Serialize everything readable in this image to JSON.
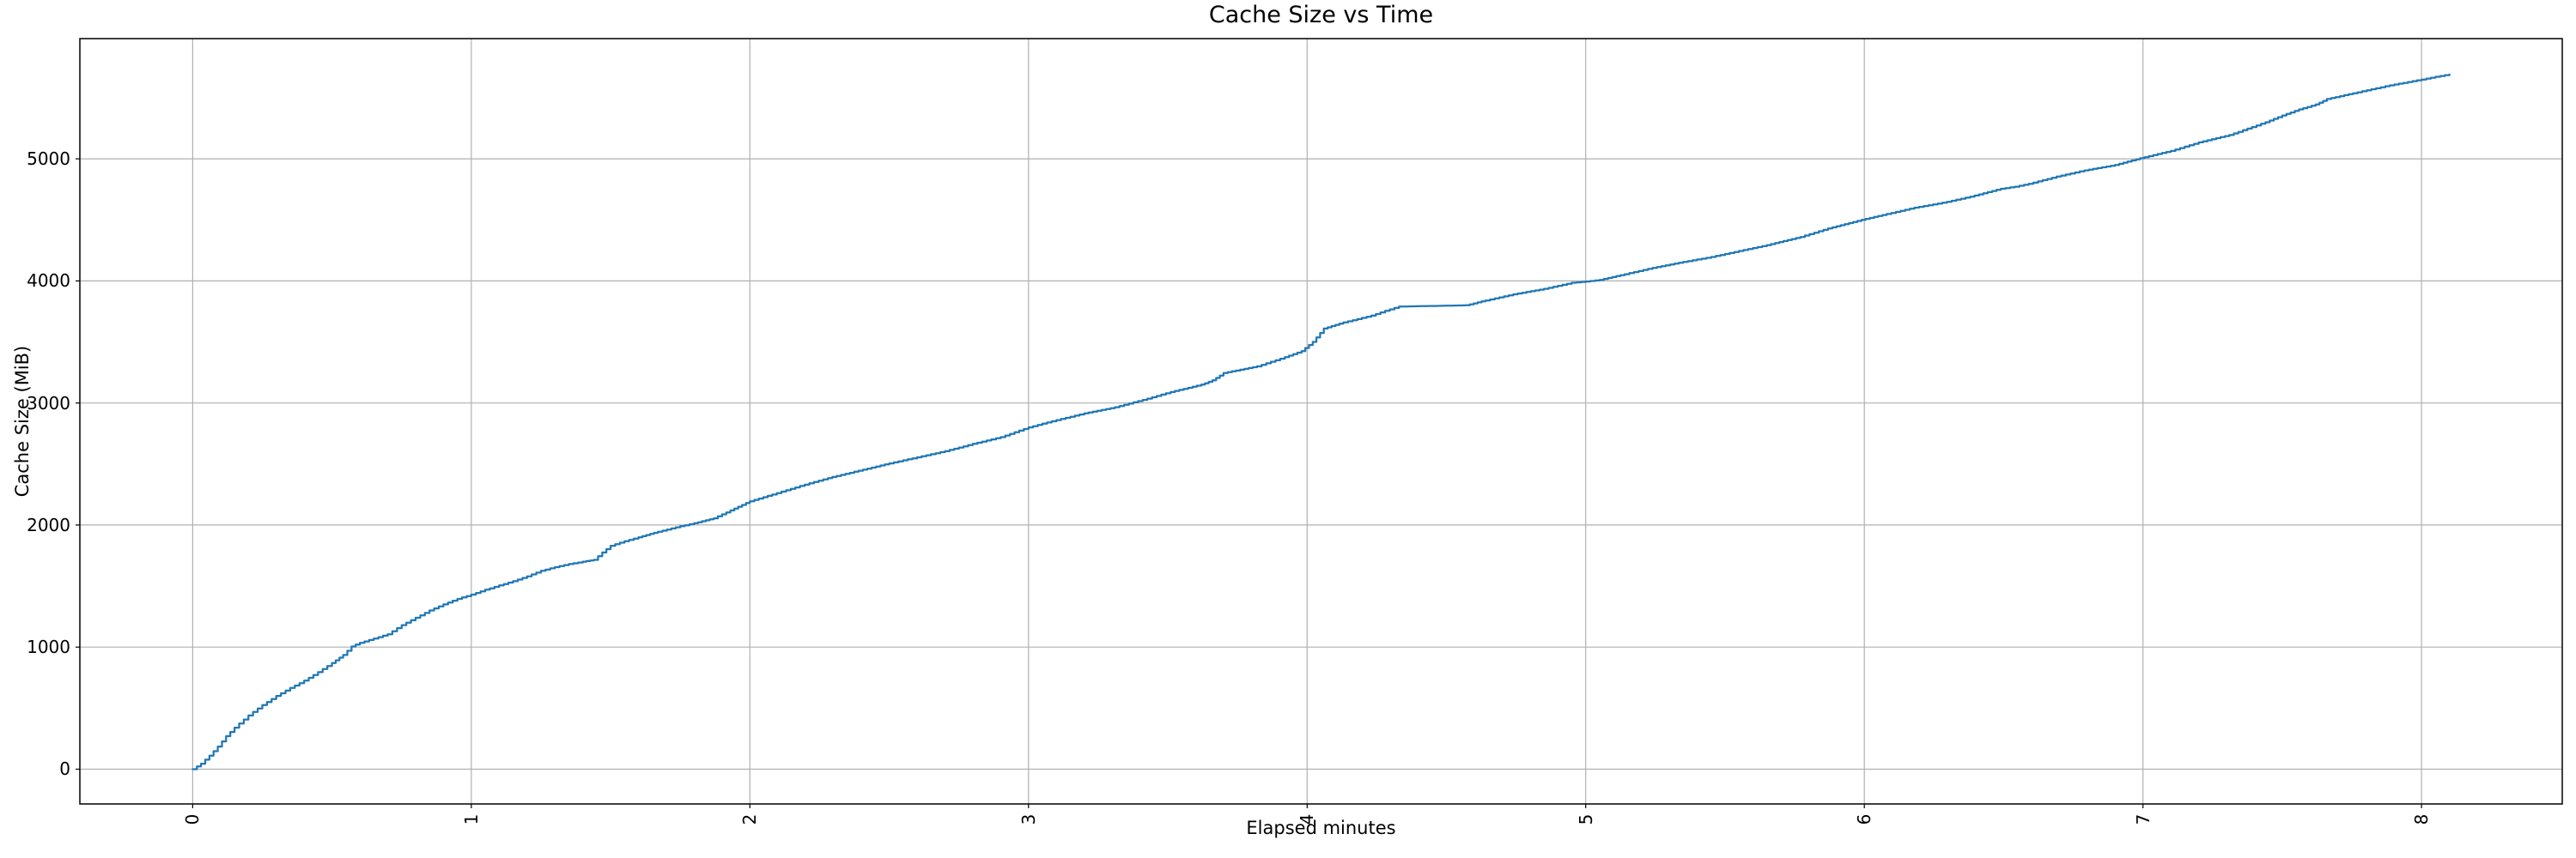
{
  "figure": {
    "background_color": "#ffffff",
    "text_color": "#000000"
  },
  "chart_data": {
    "type": "line",
    "title": "Cache Size vs Time",
    "xlabel": "Elapsed minutes",
    "ylabel": "Cache Size (MiB)",
    "xlim": [
      -0.405,
      8.505
    ],
    "ylim": [
      -285,
      5985
    ],
    "xticks": [
      0,
      1,
      2,
      3,
      4,
      5,
      6,
      7,
      8
    ],
    "yticks": [
      0,
      1000,
      2000,
      3000,
      4000,
      5000
    ],
    "x_tick_rotation_deg": 90,
    "grid": true,
    "legend": false,
    "line_color": "#1f77b4",
    "grid_color": "#b0b0b0",
    "spine_color": "#000000",
    "series": [
      {
        "name": "cache-size-mib",
        "points": [
          [
            0,
            0
          ],
          [
            0.03,
            45
          ],
          [
            0.06,
            110
          ],
          [
            0.09,
            185
          ],
          [
            0.12,
            270
          ],
          [
            0.15,
            340
          ],
          [
            0.2,
            440
          ],
          [
            0.25,
            525
          ],
          [
            0.3,
            600
          ],
          [
            0.35,
            665
          ],
          [
            0.4,
            725
          ],
          [
            0.45,
            795
          ],
          [
            0.5,
            870
          ],
          [
            0.54,
            935
          ],
          [
            0.57,
            1005
          ],
          [
            0.6,
            1035
          ],
          [
            0.65,
            1070
          ],
          [
            0.7,
            1105
          ],
          [
            0.75,
            1180
          ],
          [
            0.8,
            1240
          ],
          [
            0.85,
            1300
          ],
          [
            0.9,
            1350
          ],
          [
            0.95,
            1395
          ],
          [
            1,
            1430
          ],
          [
            1.05,
            1470
          ],
          [
            1.1,
            1505
          ],
          [
            1.15,
            1540
          ],
          [
            1.2,
            1580
          ],
          [
            1.25,
            1625
          ],
          [
            1.3,
            1655
          ],
          [
            1.35,
            1680
          ],
          [
            1.4,
            1700
          ],
          [
            1.44,
            1715
          ],
          [
            1.47,
            1775
          ],
          [
            1.5,
            1830
          ],
          [
            1.55,
            1868
          ],
          [
            1.6,
            1900
          ],
          [
            1.67,
            1945
          ],
          [
            1.75,
            1990
          ],
          [
            1.8,
            2015
          ],
          [
            1.87,
            2055
          ],
          [
            1.93,
            2120
          ],
          [
            2,
            2195
          ],
          [
            2.08,
            2250
          ],
          [
            2.18,
            2320
          ],
          [
            2.28,
            2385
          ],
          [
            2.39,
            2445
          ],
          [
            2.5,
            2505
          ],
          [
            2.6,
            2555
          ],
          [
            2.7,
            2605
          ],
          [
            2.8,
            2665
          ],
          [
            2.9,
            2720
          ],
          [
            3,
            2800
          ],
          [
            3.1,
            2860
          ],
          [
            3.2,
            2915
          ],
          [
            3.31,
            2965
          ],
          [
            3.41,
            3025
          ],
          [
            3.51,
            3090
          ],
          [
            3.62,
            3150
          ],
          [
            3.66,
            3185
          ],
          [
            3.7,
            3245
          ],
          [
            3.82,
            3300
          ],
          [
            3.92,
            3375
          ],
          [
            3.98,
            3425
          ],
          [
            4.02,
            3500
          ],
          [
            4.06,
            3610
          ],
          [
            4.13,
            3660
          ],
          [
            4.23,
            3715
          ],
          [
            4.28,
            3755
          ],
          [
            4.33,
            3790
          ],
          [
            4.45,
            3795
          ],
          [
            4.57,
            3800
          ],
          [
            4.64,
            3840
          ],
          [
            4.74,
            3890
          ],
          [
            4.85,
            3935
          ],
          [
            4.95,
            3985
          ],
          [
            5,
            3995
          ],
          [
            5.05,
            4008
          ],
          [
            5.14,
            4055
          ],
          [
            5.24,
            4107
          ],
          [
            5.35,
            4155
          ],
          [
            5.45,
            4196
          ],
          [
            5.55,
            4245
          ],
          [
            5.65,
            4293
          ],
          [
            5.77,
            4360
          ],
          [
            5.87,
            4430
          ],
          [
            5.99,
            4500
          ],
          [
            6.08,
            4548
          ],
          [
            6.18,
            4600
          ],
          [
            6.28,
            4640
          ],
          [
            6.38,
            4690
          ],
          [
            6.49,
            4755
          ],
          [
            6.54,
            4772
          ],
          [
            6.59,
            4795
          ],
          [
            6.69,
            4855
          ],
          [
            6.79,
            4905
          ],
          [
            6.9,
            4950
          ],
          [
            6.99,
            5005
          ],
          [
            7.1,
            5065
          ],
          [
            7.2,
            5135
          ],
          [
            7.31,
            5195
          ],
          [
            7.44,
            5300
          ],
          [
            7.5,
            5355
          ],
          [
            7.56,
            5405
          ],
          [
            7.62,
            5445
          ],
          [
            7.66,
            5490
          ],
          [
            7.77,
            5545
          ],
          [
            7.87,
            5595
          ],
          [
            8,
            5650
          ],
          [
            8.05,
            5672
          ],
          [
            8.1,
            5692
          ]
        ]
      }
    ]
  }
}
